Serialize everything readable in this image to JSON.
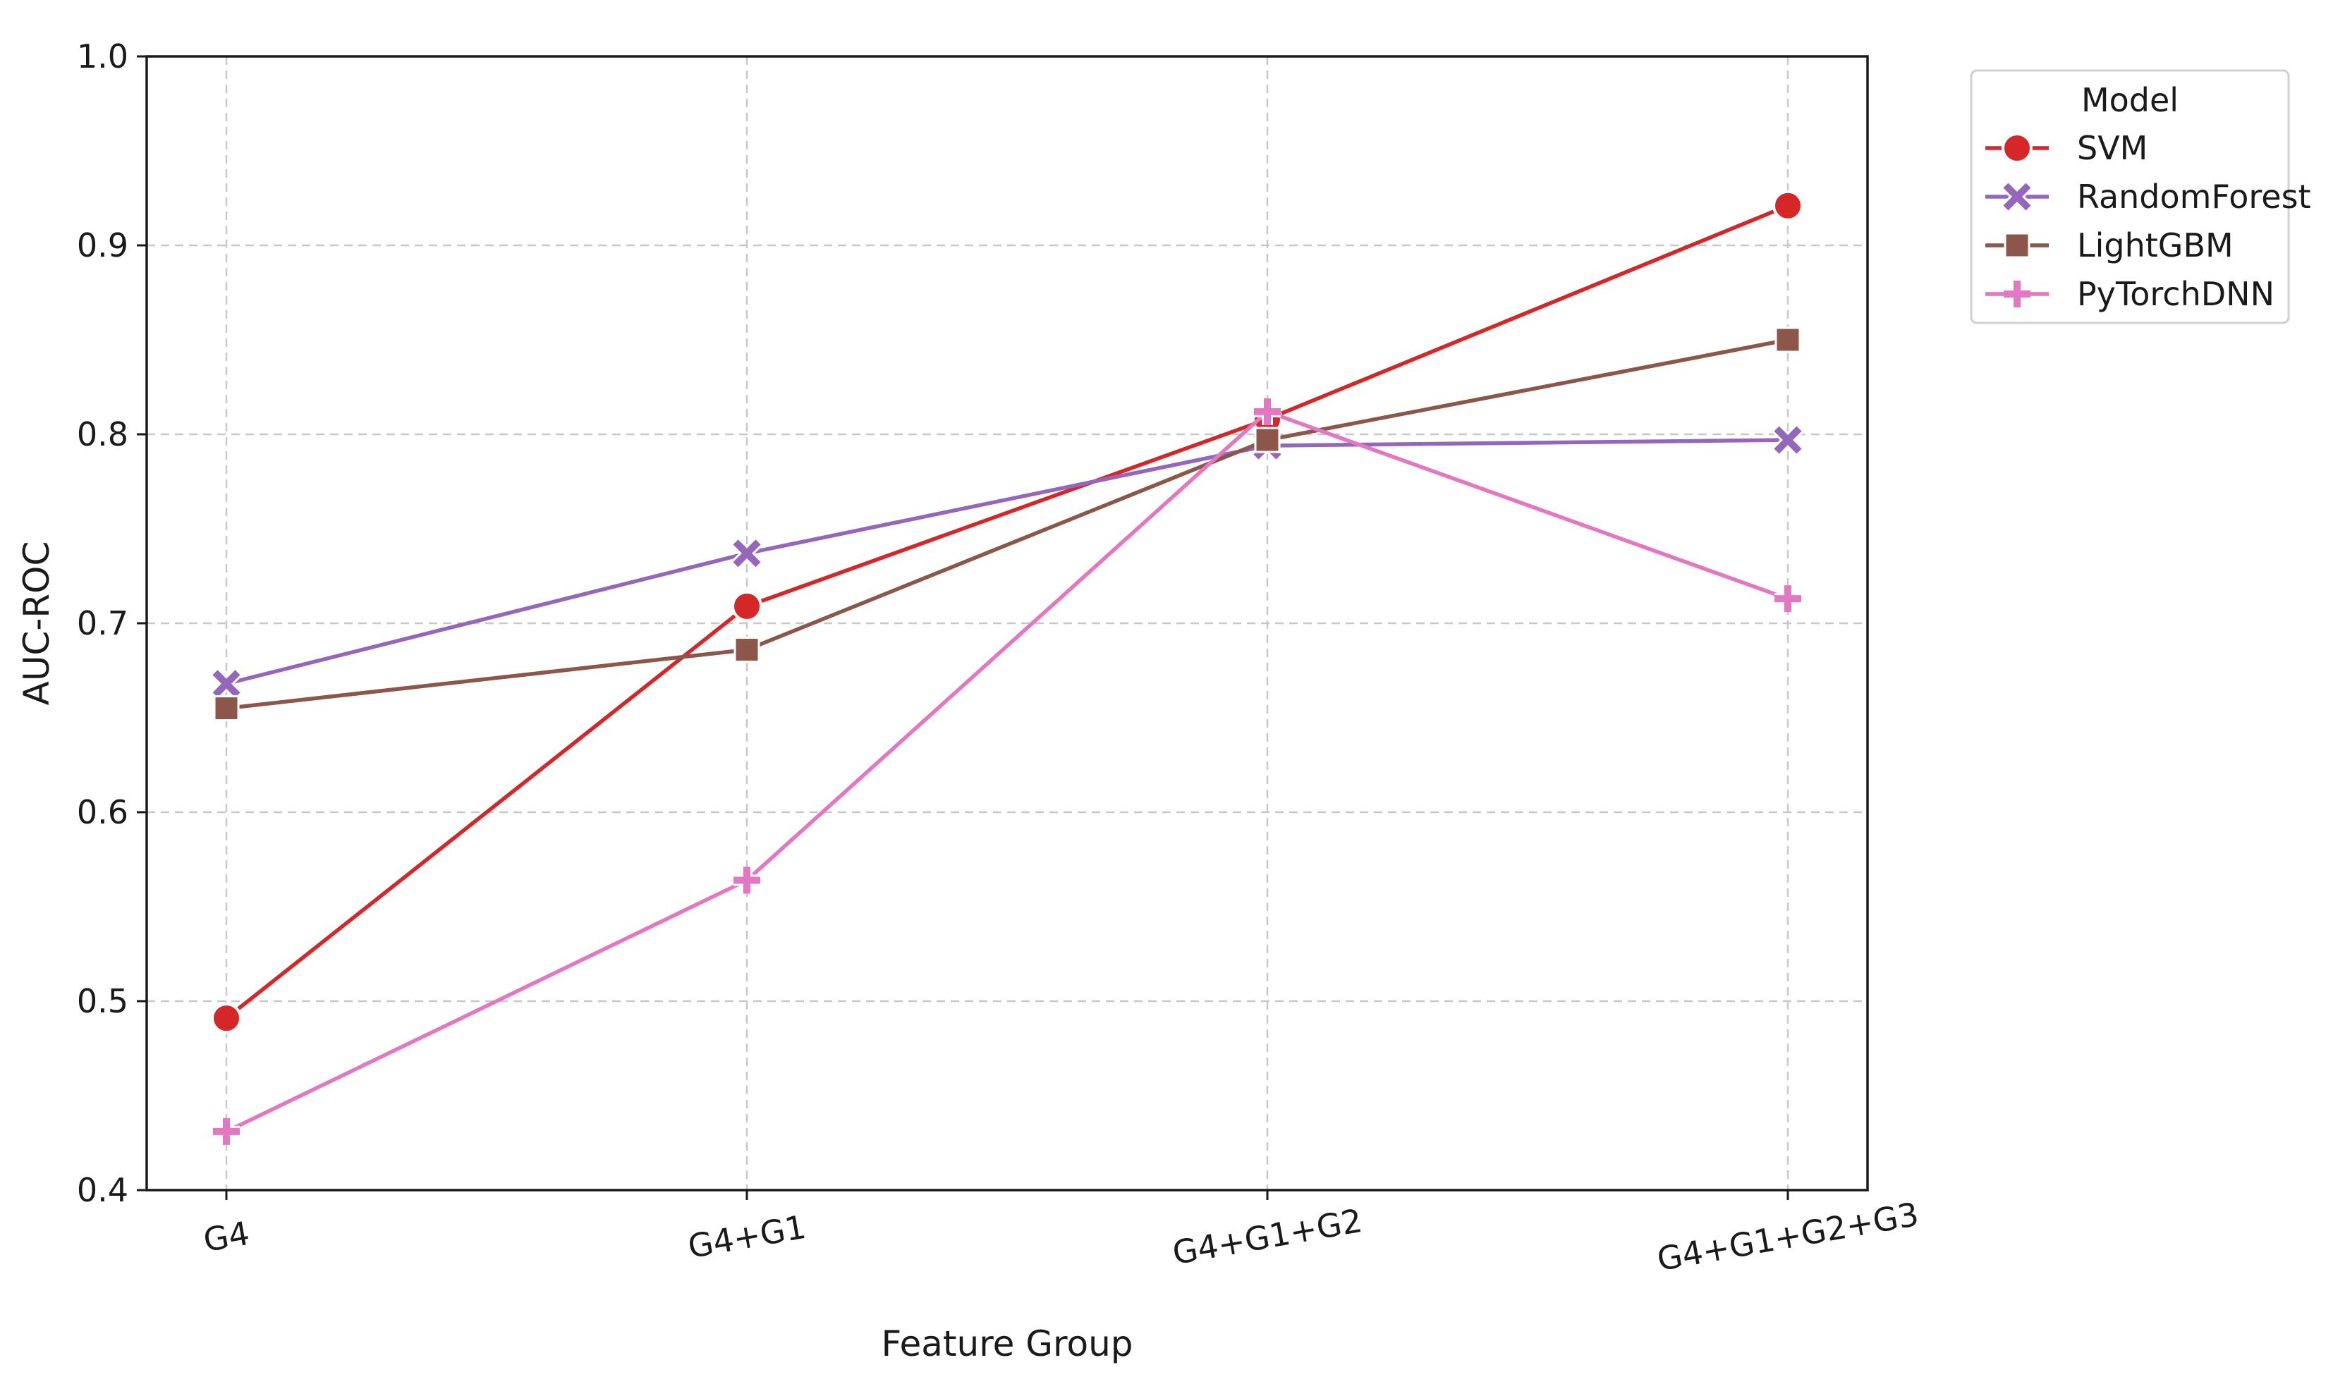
{
  "chart_data": {
    "type": "line",
    "title": "",
    "xlabel": "Feature Group",
    "ylabel": "AUC-ROC",
    "categories": [
      "G4",
      "G4+G1",
      "G4+G1+G2",
      "G4+G1+G2+G3"
    ],
    "ylim": [
      0.4,
      1.0
    ],
    "yticks": [
      "0.4",
      "0.5",
      "0.6",
      "0.7",
      "0.8",
      "0.9",
      "1.0"
    ],
    "grid": true,
    "legend": {
      "title": "Model",
      "placement": "outside-top-right"
    },
    "series": [
      {
        "name": "SVM",
        "marker": "circle",
        "color": "#d62728",
        "values": [
          0.491,
          0.709,
          0.808,
          0.921
        ]
      },
      {
        "name": "RandomForest",
        "marker": "x",
        "color": "#9467bd",
        "values": [
          0.668,
          0.737,
          0.794,
          0.797
        ]
      },
      {
        "name": "LightGBM",
        "marker": "square",
        "color": "#8c564b",
        "values": [
          0.655,
          0.686,
          0.797,
          0.85
        ]
      },
      {
        "name": "PyTorchDNN",
        "marker": "plus",
        "color": "#e377c2",
        "values": [
          0.431,
          0.564,
          0.812,
          0.713
        ]
      }
    ]
  }
}
